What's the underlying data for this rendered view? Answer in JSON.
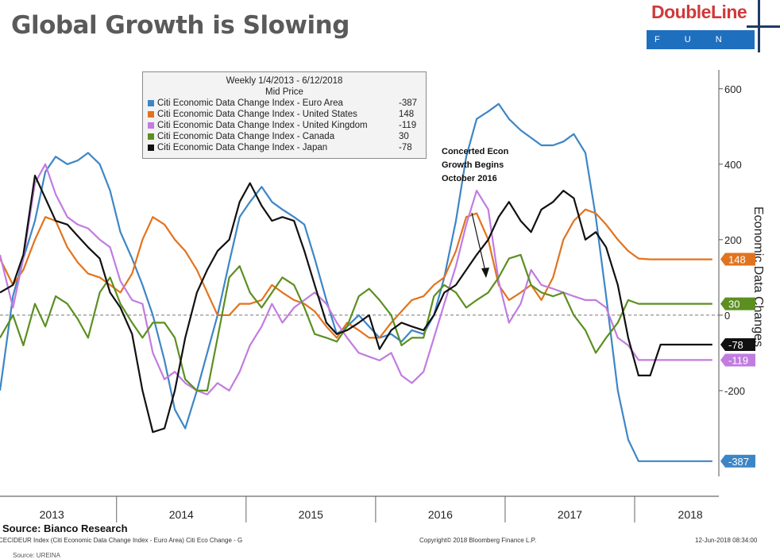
{
  "header": {
    "title": "Global Growth is Slowing"
  },
  "logo": {
    "brand": "DoubleLine",
    "sub": "F U N D S"
  },
  "legend": {
    "heading1": "Weekly 1/4/2013 - 6/12/2018",
    "heading2": "Mid Price",
    "items": [
      {
        "name": "Citi Economic Data Change Index - Euro Area",
        "value": "-387",
        "color": "#3d86c6"
      },
      {
        "name": "Citi Economic Data Change Index - United States",
        "value": "148",
        "color": "#e2731e"
      },
      {
        "name": "Citi Economic Data Change Index - United Kingdom",
        "value": "-119",
        "color": "#c17ce0"
      },
      {
        "name": "Citi Economic Data Change Index - Canada",
        "value": "30",
        "color": "#5c8f21"
      },
      {
        "name": "Citi Economic Data Change Index - Japan",
        "value": "-78",
        "color": "#111111"
      }
    ]
  },
  "annotation": {
    "line1": "Concerted Econ",
    "line2": "Growth Begins",
    "line3": "October 2016"
  },
  "footer": {
    "source": "Source: Bianco Research",
    "ticker": "CECIDEUR Index (Citi Economic Data Change Index - Euro Area) Citi Eco Change - G",
    "copyright": "Copyright© 2018 Bloomberg Finance L.P.",
    "timestamp": "12-Jun-2018 08:34:00",
    "cut": "Source: UREINA"
  },
  "chart_data": {
    "type": "line",
    "ylabel": "Economic Data Changes",
    "ylim": [
      -480,
      650
    ],
    "yticks": [
      -200,
      0,
      200,
      400,
      600
    ],
    "ytick_labels": [
      "-200",
      "0",
      "200",
      "400",
      "600"
    ],
    "xlim": [
      2012.9,
      2018.45
    ],
    "x_labels": [
      "2013",
      "2014",
      "2015",
      "2016",
      "2017",
      "2018"
    ],
    "x_label_positions": [
      2013.3,
      2014.3,
      2015.3,
      2016.3,
      2017.3,
      2018.23
    ],
    "x_dividers": [
      2013.8,
      2014.8,
      2015.8,
      2016.8,
      2017.8
    ],
    "zero_line": true,
    "series": [
      {
        "name": "Citi Economic Data Change Index - Euro Area",
        "color": "#3d86c6",
        "last_label": "-387",
        "x": [
          2012.9,
          2013.0,
          2013.08,
          2013.17,
          2013.25,
          2013.33,
          2013.42,
          2013.5,
          2013.58,
          2013.67,
          2013.75,
          2013.83,
          2013.92,
          2014.0,
          2014.08,
          2014.17,
          2014.25,
          2014.33,
          2014.42,
          2014.5,
          2014.58,
          2014.67,
          2014.75,
          2014.83,
          2014.92,
          2015.0,
          2015.08,
          2015.17,
          2015.25,
          2015.33,
          2015.42,
          2015.5,
          2015.58,
          2015.67,
          2015.75,
          2015.83,
          2015.92,
          2016.0,
          2016.08,
          2016.17,
          2016.25,
          2016.33,
          2016.42,
          2016.5,
          2016.58,
          2016.67,
          2016.75,
          2016.83,
          2016.92,
          2017.0,
          2017.08,
          2017.17,
          2017.25,
          2017.33,
          2017.42,
          2017.5,
          2017.58,
          2017.67,
          2017.75,
          2017.83,
          2017.92,
          2018.0,
          2018.08,
          2018.17,
          2018.25,
          2018.33,
          2018.4
        ],
        "values": [
          -200,
          50,
          150,
          250,
          380,
          420,
          400,
          410,
          430,
          400,
          330,
          220,
          150,
          80,
          0,
          -120,
          -250,
          -300,
          -200,
          -100,
          0,
          140,
          260,
          300,
          340,
          300,
          280,
          260,
          240,
          150,
          40,
          -50,
          -30,
          0,
          -30,
          -60,
          -50,
          -70,
          -40,
          -50,
          0,
          100,
          250,
          420,
          520,
          540,
          560,
          520,
          490,
          470,
          450,
          450,
          460,
          480,
          430,
          260,
          50,
          -200,
          -330,
          -387,
          -387,
          -387,
          -387,
          -387,
          -387,
          -387,
          -387
        ]
      },
      {
        "name": "Citi Economic Data Change Index - United States",
        "color": "#e2731e",
        "last_label": "148",
        "x": [
          2012.9,
          2013.0,
          2013.08,
          2013.17,
          2013.25,
          2013.33,
          2013.42,
          2013.5,
          2013.58,
          2013.67,
          2013.75,
          2013.83,
          2013.92,
          2014.0,
          2014.08,
          2014.17,
          2014.25,
          2014.33,
          2014.42,
          2014.5,
          2014.58,
          2014.67,
          2014.75,
          2014.83,
          2014.92,
          2015.0,
          2015.08,
          2015.17,
          2015.25,
          2015.33,
          2015.42,
          2015.5,
          2015.58,
          2015.67,
          2015.75,
          2015.83,
          2015.92,
          2016.0,
          2016.08,
          2016.17,
          2016.25,
          2016.33,
          2016.42,
          2016.5,
          2016.58,
          2016.67,
          2016.75,
          2016.83,
          2016.92,
          2017.0,
          2017.08,
          2017.17,
          2017.25,
          2017.33,
          2017.42,
          2017.5,
          2017.58,
          2017.67,
          2017.75,
          2017.83,
          2017.92,
          2018.0,
          2018.08,
          2018.17,
          2018.25,
          2018.33,
          2018.4
        ],
        "values": [
          150,
          80,
          120,
          200,
          260,
          250,
          180,
          140,
          110,
          100,
          80,
          60,
          110,
          200,
          260,
          240,
          200,
          170,
          120,
          60,
          0,
          0,
          30,
          30,
          40,
          80,
          60,
          40,
          30,
          10,
          -30,
          -60,
          -20,
          -40,
          -60,
          -60,
          -20,
          10,
          40,
          50,
          80,
          100,
          170,
          260,
          270,
          200,
          80,
          40,
          60,
          80,
          40,
          100,
          200,
          250,
          280,
          270,
          240,
          200,
          170,
          150,
          148,
          148,
          148,
          148,
          148,
          148,
          148
        ]
      },
      {
        "name": "Citi Economic Data Change Index - United Kingdom",
        "color": "#c17ce0",
        "last_label": "-119",
        "x": [
          2012.9,
          2013.0,
          2013.08,
          2013.17,
          2013.25,
          2013.33,
          2013.42,
          2013.5,
          2013.58,
          2013.67,
          2013.75,
          2013.83,
          2013.92,
          2014.0,
          2014.08,
          2014.17,
          2014.25,
          2014.33,
          2014.42,
          2014.5,
          2014.58,
          2014.67,
          2014.75,
          2014.83,
          2014.92,
          2015.0,
          2015.08,
          2015.17,
          2015.25,
          2015.33,
          2015.42,
          2015.5,
          2015.58,
          2015.67,
          2015.75,
          2015.83,
          2015.92,
          2016.0,
          2016.08,
          2016.17,
          2016.25,
          2016.33,
          2016.42,
          2016.5,
          2016.58,
          2016.67,
          2016.75,
          2016.83,
          2016.92,
          2017.0,
          2017.08,
          2017.17,
          2017.25,
          2017.33,
          2017.42,
          2017.5,
          2017.58,
          2017.67,
          2017.75,
          2017.83,
          2017.92,
          2018.0,
          2018.08,
          2018.17,
          2018.25,
          2018.33,
          2018.4
        ],
        "values": [
          160,
          20,
          150,
          350,
          400,
          320,
          260,
          240,
          230,
          200,
          180,
          90,
          40,
          30,
          -100,
          -170,
          -150,
          -180,
          -200,
          -210,
          -180,
          -200,
          -150,
          -80,
          -30,
          30,
          -20,
          20,
          40,
          60,
          30,
          -20,
          -60,
          -100,
          -110,
          -120,
          -100,
          -160,
          -180,
          -150,
          -60,
          30,
          130,
          240,
          330,
          280,
          90,
          -20,
          30,
          120,
          80,
          70,
          60,
          50,
          40,
          40,
          20,
          -60,
          -80,
          -119,
          -119,
          -119,
          -119,
          -119,
          -119,
          -119,
          -119
        ]
      },
      {
        "name": "Citi Economic Data Change Index - Canada",
        "color": "#5c8f21",
        "last_label": "30",
        "x": [
          2012.9,
          2013.0,
          2013.08,
          2013.17,
          2013.25,
          2013.33,
          2013.42,
          2013.5,
          2013.58,
          2013.67,
          2013.75,
          2013.83,
          2013.92,
          2014.0,
          2014.08,
          2014.17,
          2014.25,
          2014.33,
          2014.42,
          2014.5,
          2014.58,
          2014.67,
          2014.75,
          2014.83,
          2014.92,
          2015.0,
          2015.08,
          2015.17,
          2015.25,
          2015.33,
          2015.42,
          2015.5,
          2015.58,
          2015.67,
          2015.75,
          2015.83,
          2015.92,
          2016.0,
          2016.08,
          2016.17,
          2016.25,
          2016.33,
          2016.42,
          2016.5,
          2016.58,
          2016.67,
          2016.75,
          2016.83,
          2016.92,
          2017.0,
          2017.08,
          2017.17,
          2017.25,
          2017.33,
          2017.42,
          2017.5,
          2017.58,
          2017.67,
          2017.75,
          2017.83,
          2017.92,
          2018.0,
          2018.08,
          2018.17,
          2018.25,
          2018.33,
          2018.4
        ],
        "values": [
          -60,
          0,
          -80,
          30,
          -30,
          50,
          30,
          -10,
          -60,
          60,
          100,
          30,
          -20,
          -60,
          -20,
          -20,
          -60,
          -170,
          -200,
          -200,
          -60,
          100,
          130,
          60,
          20,
          60,
          100,
          80,
          20,
          -50,
          -60,
          -70,
          -30,
          50,
          70,
          40,
          0,
          -80,
          -60,
          -60,
          50,
          80,
          60,
          20,
          40,
          60,
          100,
          150,
          160,
          80,
          60,
          50,
          60,
          0,
          -40,
          -100,
          -60,
          -20,
          40,
          30,
          30,
          30,
          30,
          30,
          30,
          30,
          30
        ]
      },
      {
        "name": "Citi Economic Data Change Index - Japan",
        "color": "#111111",
        "last_label": "-78",
        "x": [
          2012.9,
          2013.0,
          2013.08,
          2013.17,
          2013.25,
          2013.33,
          2013.42,
          2013.5,
          2013.58,
          2013.67,
          2013.75,
          2013.83,
          2013.92,
          2014.0,
          2014.08,
          2014.17,
          2014.25,
          2014.33,
          2014.42,
          2014.5,
          2014.58,
          2014.67,
          2014.75,
          2014.83,
          2014.92,
          2015.0,
          2015.08,
          2015.17,
          2015.25,
          2015.33,
          2015.42,
          2015.5,
          2015.58,
          2015.67,
          2015.75,
          2015.83,
          2015.92,
          2016.0,
          2016.08,
          2016.17,
          2016.25,
          2016.33,
          2016.42,
          2016.5,
          2016.58,
          2016.67,
          2016.75,
          2016.83,
          2016.92,
          2017.0,
          2017.08,
          2017.17,
          2017.25,
          2017.33,
          2017.42,
          2017.5,
          2017.58,
          2017.67,
          2017.75,
          2017.83,
          2017.92,
          2018.0,
          2018.08,
          2018.17,
          2018.25,
          2018.33,
          2018.4
        ],
        "values": [
          60,
          80,
          160,
          370,
          310,
          250,
          240,
          210,
          180,
          150,
          60,
          20,
          -50,
          -200,
          -310,
          -300,
          -200,
          -60,
          60,
          120,
          170,
          200,
          300,
          350,
          290,
          250,
          260,
          250,
          170,
          80,
          -20,
          -50,
          -40,
          -20,
          0,
          -90,
          -40,
          -20,
          -30,
          -40,
          0,
          60,
          80,
          120,
          160,
          200,
          260,
          300,
          250,
          220,
          280,
          300,
          330,
          310,
          200,
          220,
          180,
          80,
          -60,
          -160,
          -160,
          -78,
          -78,
          -78,
          -78,
          -78,
          -78
        ]
      }
    ]
  }
}
